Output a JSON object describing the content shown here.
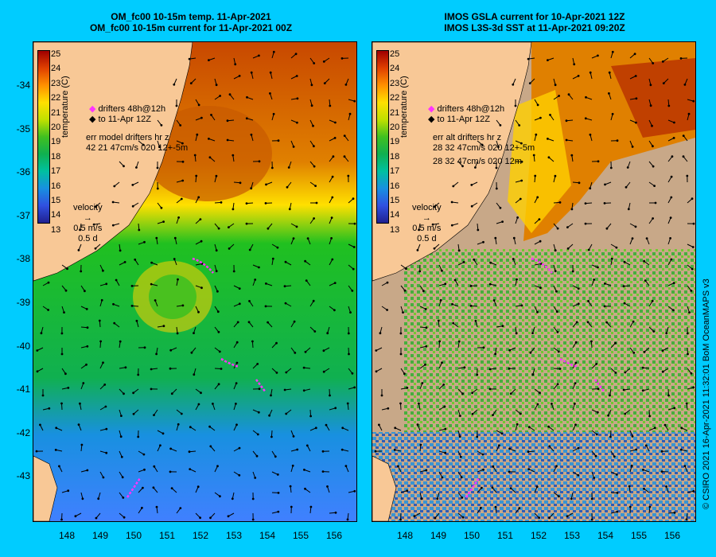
{
  "left_panel": {
    "title_line1": "OM_fc00 10-15m temp. 11-Apr-2021",
    "title_line2": "OM_fc00 10-15m current for 11-Apr-2021 00Z",
    "colorbar_label": "temperature (C)",
    "colorbar_ticks": [
      "25",
      "24",
      "23",
      "22",
      "21",
      "20",
      "19",
      "18",
      "17",
      "16",
      "15",
      "14",
      "13"
    ],
    "drifter_line1": "drifters 48h@12h",
    "drifter_line2": "to 11-Apr 12Z",
    "err_line1": "err model drifters hr z",
    "err_line2": "42 21 47cm/s 020 12+-5m",
    "err_line3": "",
    "velocity_title": "velocity",
    "velocity_speed": "0.5 m/s",
    "velocity_time": "0.5 d"
  },
  "right_panel": {
    "title_line1": "IMOS GSLA current for 10-Apr-2021 12Z",
    "title_line2": "IMOS L3S-3d SST at 11-Apr-2021 09:20Z",
    "colorbar_label": "temperature (C)",
    "colorbar_ticks": [
      "25",
      "24",
      "23",
      "22",
      "21",
      "20",
      "19",
      "18",
      "17",
      "16",
      "15",
      "14",
      "13"
    ],
    "drifter_line1": "drifters 48h@12h",
    "drifter_line2": "to 11-Apr 12Z",
    "err_line1": "err alt drifters hr z",
    "err_line2": "28 32 47cm/s 020 12+-5m",
    "err_line3": "28 32 47cm/s 020 12m",
    "velocity_title": "velocity",
    "velocity_speed": "0.5 m/s",
    "velocity_time": "0.5 d"
  },
  "y_axis_ticks": [
    "-34",
    "-35",
    "-36",
    "-37",
    "-38",
    "-39",
    "-40",
    "-41",
    "-42",
    "-43"
  ],
  "x_axis_ticks": [
    "148",
    "149",
    "150",
    "151",
    "152",
    "153",
    "154",
    "155",
    "156"
  ],
  "credit": "© CSIRO 2021   16-Apr-2021 11:32:01 BoM OceanMAPS v3",
  "colors": {
    "background": "#00ccff",
    "land": "#f8c896",
    "cloud_mask": "#c8a888",
    "drifter": "#ff33ff",
    "arrow": "#000000"
  }
}
